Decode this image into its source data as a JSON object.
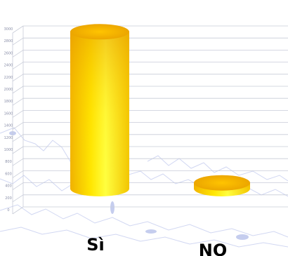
{
  "chart_data": {
    "type": "bar",
    "style": "3d-cylinder",
    "categories": [
      "Sì",
      "NO"
    ],
    "values": [
      2700,
      100
    ],
    "ylim": [
      0,
      3000
    ],
    "yticks": [
      "0",
      "200",
      "400",
      "600",
      "800",
      "1000",
      "1200",
      "1400",
      "1600",
      "1800",
      "2000",
      "2200",
      "2400",
      "2600",
      "2800",
      "3000"
    ],
    "grid": true,
    "legend": "none",
    "colors": {
      "cylinder_light": "#ffff33",
      "cylinder_mid": "#ffd21a",
      "cylinder_dark": "#e8a000",
      "grid": "#c8ccd8",
      "background_scribble": "#5a6fcf"
    }
  }
}
